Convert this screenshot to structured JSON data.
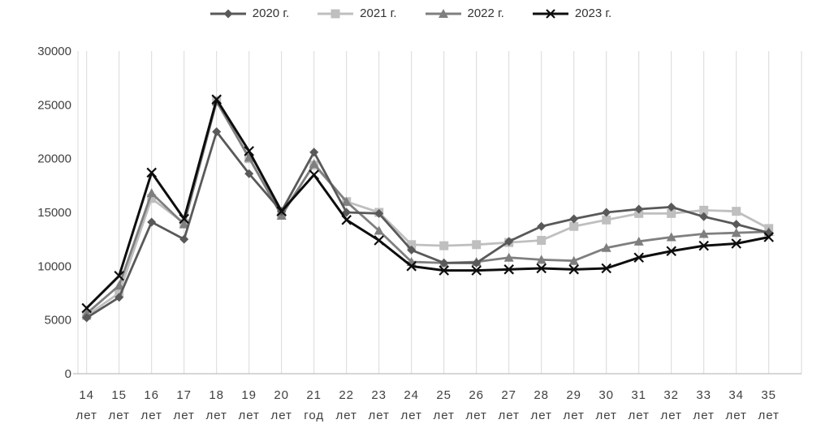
{
  "chart_data": {
    "type": "line",
    "title": "",
    "xlabel": "",
    "ylabel": "",
    "categories": [
      "14 лет",
      "15 лет",
      "16 лет",
      "17 лет",
      "18 лет",
      "19 лет",
      "20 лет",
      "21 год",
      "22 лет",
      "23 лет",
      "24 лет",
      "25 лет",
      "26 лет",
      "27 лет",
      "28 лет",
      "29 лет",
      "30 лет",
      "31 лет",
      "32 лет",
      "33 лет",
      "34 лет",
      "35 лет"
    ],
    "x_tick_numbers": [
      "14",
      "15",
      "16",
      "17",
      "18",
      "19",
      "20",
      "21",
      "22",
      "23",
      "24",
      "25",
      "26",
      "27",
      "28",
      "29",
      "30",
      "31",
      "32",
      "33",
      "34",
      "35"
    ],
    "x_tick_units": [
      "лет",
      "лет",
      "лет",
      "лет",
      "лет",
      "лет",
      "лет",
      "год",
      "лет",
      "лет",
      "лет",
      "лет",
      "лет",
      "лет",
      "лет",
      "лет",
      "лет",
      "лет",
      "лет",
      "лет",
      "лет",
      "лет"
    ],
    "series": [
      {
        "name": "2020 г.",
        "marker": "diamond",
        "color": "#595959",
        "values": [
          5200,
          7100,
          14100,
          12500,
          22500,
          18600,
          15100,
          20600,
          15000,
          14900,
          11500,
          10300,
          10300,
          12300,
          13700,
          14400,
          15000,
          15300,
          15500,
          14600,
          13900,
          13100
        ]
      },
      {
        "name": "2021 г.",
        "marker": "square",
        "color": "#bfbfbf",
        "values": [
          5400,
          7500,
          16300,
          14000,
          25400,
          20000,
          14900,
          19400,
          16000,
          15000,
          12000,
          11900,
          12000,
          12200,
          12400,
          13700,
          14300,
          14900,
          14900,
          15200,
          15100,
          13500
        ]
      },
      {
        "name": "2022 г.",
        "marker": "triangle",
        "color": "#7f7f7f",
        "values": [
          5600,
          8200,
          16800,
          13900,
          25300,
          20100,
          14700,
          19500,
          16000,
          13300,
          10400,
          10300,
          10400,
          10800,
          10600,
          10500,
          11700,
          12300,
          12700,
          13000,
          13100,
          13200
        ]
      },
      {
        "name": "2023 г.",
        "marker": "x",
        "color": "#0d0d0d",
        "values": [
          6100,
          9100,
          18700,
          14400,
          25500,
          20700,
          15100,
          18500,
          14300,
          12400,
          10000,
          9600,
          9600,
          9700,
          9800,
          9700,
          9800,
          10800,
          11400,
          11900,
          12100,
          12700
        ]
      }
    ],
    "ylim": [
      0,
      30000
    ],
    "ytick_step": 5000,
    "ytick_labels": [
      "0",
      "5000",
      "10000",
      "15000",
      "20000",
      "25000",
      "30000"
    ],
    "grid": "vertical-only",
    "legend_position": "top",
    "axis_color": "#bfbfbf",
    "grid_color": "#d9d9d9",
    "tick_label_color": "#404040"
  }
}
